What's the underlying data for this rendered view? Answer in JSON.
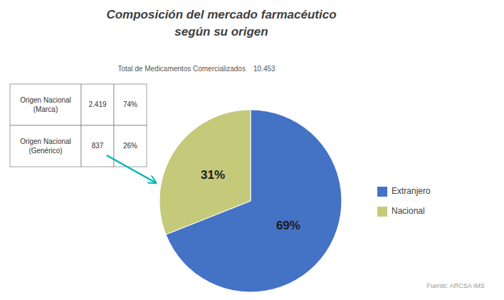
{
  "chart_data": {
    "type": "pie",
    "title": "Composición del mercado farmacéutico\nsegún su origen",
    "subtitle": "Total de Medicamentos Comercializados    10.453",
    "categories": [
      "Extranjero",
      "Nacional"
    ],
    "values": [
      69,
      31
    ],
    "value_labels": [
      "69%",
      "31%"
    ],
    "colors": [
      "#4472C4",
      "#C5C97A"
    ],
    "data_labels": true,
    "legend": "right",
    "source": "Fuente: ARCSA IMS",
    "table": {
      "rows": [
        [
          "Origen Nacional\n(Marca)",
          "2.419",
          "74%"
        ],
        [
          "Origen Nacional\n(Genérico)",
          "837",
          "26%"
        ]
      ]
    },
    "arrow": {
      "color": "#00B8B0"
    }
  }
}
